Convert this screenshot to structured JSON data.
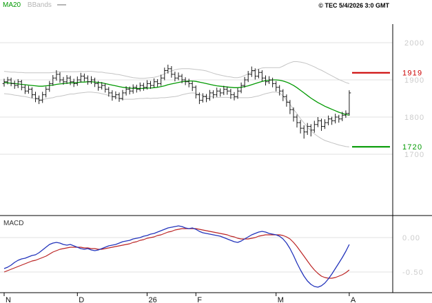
{
  "meta": {
    "copyright": "© TEC 5/4/2026 3:0 GMT"
  },
  "legend": {
    "ma20": "MA20",
    "bbands": "BBands"
  },
  "colors": {
    "ma20": "#009900",
    "bbands": "#c4c4c4",
    "bars": "#1a1a1a",
    "grid": "#e2e2e2",
    "axis_text": "#cbcbcb",
    "macd_line": "#2233bb",
    "macd_signal": "#bb2222",
    "frame": "#000000"
  },
  "price_axis": {
    "ticks": [
      2000,
      1900,
      1800,
      1700
    ],
    "levels": [
      {
        "role": "resistance",
        "label": "1919",
        "value": 1919,
        "color": "#cc0000"
      },
      {
        "role": "support",
        "label": "1720",
        "value": 1720,
        "color": "#009900"
      }
    ]
  },
  "macd_axis": {
    "label": "MACD",
    "ticks": [
      {
        "label": "0.00",
        "value": 0
      },
      {
        "label": "-0.50",
        "value": -0.5
      }
    ]
  },
  "x_axis": {
    "labels": [
      {
        "text": "N",
        "index": 0
      },
      {
        "text": "D",
        "index": 21
      },
      {
        "text": "26",
        "index": 41
      },
      {
        "text": "F",
        "index": 55
      },
      {
        "text": "M",
        "index": 78
      },
      {
        "text": "A",
        "index": 99
      }
    ]
  },
  "chart_data": {
    "type": "ohlc-with-indicators",
    "panels": [
      "price-with-ma20-and-bollinger-bands",
      "macd"
    ],
    "price_ylim": [
      1540,
      2060
    ],
    "macd_ylim": [
      -0.8,
      0.3
    ],
    "ohlc": [
      [
        1890,
        1903,
        1882,
        1895
      ],
      [
        1895,
        1908,
        1888,
        1900
      ],
      [
        1900,
        1906,
        1883,
        1890
      ],
      [
        1890,
        1898,
        1876,
        1885
      ],
      [
        1885,
        1902,
        1878,
        1895
      ],
      [
        1895,
        1900,
        1872,
        1880
      ],
      [
        1880,
        1887,
        1862,
        1870
      ],
      [
        1870,
        1884,
        1863,
        1875
      ],
      [
        1875,
        1880,
        1851,
        1860
      ],
      [
        1860,
        1868,
        1840,
        1850
      ],
      [
        1850,
        1858,
        1835,
        1845
      ],
      [
        1845,
        1868,
        1838,
        1860
      ],
      [
        1860,
        1882,
        1853,
        1875
      ],
      [
        1875,
        1897,
        1868,
        1890
      ],
      [
        1890,
        1913,
        1884,
        1905
      ],
      [
        1905,
        1926,
        1898,
        1915
      ],
      [
        1915,
        1921,
        1892,
        1900
      ],
      [
        1900,
        1908,
        1887,
        1895
      ],
      [
        1895,
        1913,
        1889,
        1905
      ],
      [
        1905,
        1911,
        1886,
        1895
      ],
      [
        1895,
        1903,
        1881,
        1890
      ],
      [
        1890,
        1909,
        1884,
        1900
      ],
      [
        1900,
        1919,
        1893,
        1910
      ],
      [
        1910,
        1917,
        1896,
        1905
      ],
      [
        1905,
        1912,
        1887,
        1895
      ],
      [
        1895,
        1910,
        1889,
        1900
      ],
      [
        1900,
        1906,
        1881,
        1890
      ],
      [
        1890,
        1897,
        1871,
        1880
      ],
      [
        1880,
        1894,
        1874,
        1885
      ],
      [
        1885,
        1891,
        1866,
        1875
      ],
      [
        1875,
        1881,
        1855,
        1865
      ],
      [
        1865,
        1872,
        1844,
        1855
      ],
      [
        1855,
        1869,
        1848,
        1860
      ],
      [
        1860,
        1866,
        1841,
        1850
      ],
      [
        1850,
        1873,
        1845,
        1865
      ],
      [
        1865,
        1883,
        1858,
        1875
      ],
      [
        1875,
        1882,
        1861,
        1870
      ],
      [
        1870,
        1888,
        1863,
        1880
      ],
      [
        1880,
        1887,
        1866,
        1875
      ],
      [
        1875,
        1893,
        1869,
        1885
      ],
      [
        1885,
        1892,
        1871,
        1880
      ],
      [
        1880,
        1899,
        1874,
        1890
      ],
      [
        1890,
        1897,
        1876,
        1885
      ],
      [
        1885,
        1904,
        1879,
        1895
      ],
      [
        1895,
        1902,
        1881,
        1890
      ],
      [
        1890,
        1914,
        1884,
        1905
      ],
      [
        1905,
        1933,
        1899,
        1925
      ],
      [
        1925,
        1941,
        1917,
        1930
      ],
      [
        1930,
        1937,
        1906,
        1915
      ],
      [
        1915,
        1922,
        1896,
        1905
      ],
      [
        1905,
        1920,
        1899,
        1910
      ],
      [
        1910,
        1916,
        1891,
        1900
      ],
      [
        1900,
        1907,
        1886,
        1895
      ],
      [
        1895,
        1903,
        1880,
        1890
      ],
      [
        1890,
        1896,
        1870,
        1880
      ],
      [
        1880,
        1885,
        1850,
        1860
      ],
      [
        1860,
        1866,
        1835,
        1845
      ],
      [
        1845,
        1864,
        1839,
        1855
      ],
      [
        1855,
        1862,
        1840,
        1850
      ],
      [
        1850,
        1873,
        1844,
        1865
      ],
      [
        1865,
        1872,
        1850,
        1860
      ],
      [
        1860,
        1879,
        1854,
        1870
      ],
      [
        1870,
        1877,
        1855,
        1865
      ],
      [
        1865,
        1884,
        1859,
        1875
      ],
      [
        1875,
        1882,
        1860,
        1870
      ],
      [
        1870,
        1876,
        1849,
        1860
      ],
      [
        1860,
        1867,
        1845,
        1855
      ],
      [
        1855,
        1878,
        1849,
        1870
      ],
      [
        1870,
        1893,
        1864,
        1885
      ],
      [
        1885,
        1908,
        1879,
        1900
      ],
      [
        1900,
        1924,
        1894,
        1915
      ],
      [
        1915,
        1936,
        1908,
        1925
      ],
      [
        1925,
        1931,
        1901,
        1910
      ],
      [
        1910,
        1929,
        1904,
        1920
      ],
      [
        1920,
        1926,
        1896,
        1905
      ],
      [
        1905,
        1912,
        1885,
        1895
      ],
      [
        1895,
        1910,
        1889,
        1900
      ],
      [
        1900,
        1906,
        1880,
        1890
      ],
      [
        1890,
        1897,
        1869,
        1880
      ],
      [
        1880,
        1886,
        1858,
        1870
      ],
      [
        1870,
        1875,
        1843,
        1855
      ],
      [
        1855,
        1861,
        1828,
        1840
      ],
      [
        1840,
        1846,
        1808,
        1820
      ],
      [
        1820,
        1826,
        1788,
        1800
      ],
      [
        1800,
        1807,
        1772,
        1785
      ],
      [
        1785,
        1792,
        1756,
        1770
      ],
      [
        1770,
        1778,
        1742,
        1760
      ],
      [
        1760,
        1784,
        1752,
        1775
      ],
      [
        1775,
        1781,
        1748,
        1765
      ],
      [
        1765,
        1790,
        1758,
        1780
      ],
      [
        1780,
        1800,
        1773,
        1790
      ],
      [
        1790,
        1796,
        1763,
        1775
      ],
      [
        1775,
        1794,
        1768,
        1785
      ],
      [
        1785,
        1804,
        1778,
        1795
      ],
      [
        1795,
        1801,
        1779,
        1790
      ],
      [
        1790,
        1809,
        1783,
        1800
      ],
      [
        1800,
        1806,
        1785,
        1795
      ],
      [
        1795,
        1814,
        1789,
        1805
      ],
      [
        1805,
        1818,
        1798,
        1810
      ],
      [
        1810,
        1872,
        1804,
        1865
      ]
    ],
    "ma20": [
      1893,
      1892,
      1891,
      1890,
      1889,
      1888,
      1887,
      1886,
      1885,
      1884,
      1883,
      1883,
      1884,
      1885,
      1886,
      1888,
      1889,
      1890,
      1891,
      1892,
      1892,
      1893,
      1894,
      1894,
      1895,
      1895,
      1894,
      1893,
      1892,
      1890,
      1888,
      1886,
      1884,
      1882,
      1880,
      1879,
      1878,
      1877,
      1877,
      1877,
      1877,
      1878,
      1878,
      1879,
      1880,
      1882,
      1884,
      1887,
      1889,
      1891,
      1893,
      1895,
      1896,
      1897,
      1897,
      1896,
      1894,
      1892,
      1890,
      1888,
      1886,
      1884,
      1883,
      1882,
      1881,
      1880,
      1879,
      1879,
      1880,
      1882,
      1884,
      1887,
      1890,
      1893,
      1896,
      1898,
      1899,
      1900,
      1900,
      1899,
      1897,
      1894,
      1890,
      1885,
      1879,
      1872,
      1865,
      1858,
      1851,
      1845,
      1839,
      1834,
      1829,
      1825,
      1821,
      1817,
      1813,
      1810,
      1807,
      1805
    ],
    "bbands_halfwidth": [
      30,
      30,
      30,
      31,
      31,
      32,
      32,
      33,
      34,
      35,
      36,
      36,
      35,
      34,
      34,
      33,
      33,
      32,
      31,
      30,
      30,
      29,
      29,
      28,
      28,
      28,
      28,
      28,
      29,
      29,
      30,
      31,
      31,
      32,
      32,
      31,
      30,
      29,
      28,
      27,
      27,
      27,
      28,
      28,
      29,
      30,
      32,
      34,
      35,
      36,
      36,
      35,
      34,
      33,
      32,
      32,
      33,
      34,
      34,
      33,
      32,
      31,
      30,
      29,
      28,
      28,
      27,
      27,
      28,
      30,
      32,
      34,
      35,
      36,
      36,
      35,
      34,
      33,
      33,
      34,
      40,
      48,
      56,
      64,
      70,
      76,
      81,
      85,
      88,
      90,
      91,
      92,
      92,
      91,
      90,
      89,
      88,
      87,
      86,
      85
    ],
    "macd": [
      -0.45,
      -0.43,
      -0.4,
      -0.36,
      -0.33,
      -0.31,
      -0.3,
      -0.28,
      -0.26,
      -0.25,
      -0.22,
      -0.18,
      -0.14,
      -0.1,
      -0.08,
      -0.07,
      -0.08,
      -0.1,
      -0.11,
      -0.1,
      -0.12,
      -0.14,
      -0.16,
      -0.17,
      -0.16,
      -0.18,
      -0.19,
      -0.18,
      -0.16,
      -0.14,
      -0.12,
      -0.11,
      -0.1,
      -0.08,
      -0.06,
      -0.05,
      -0.04,
      -0.02,
      -0.01,
      0.0,
      0.02,
      0.03,
      0.05,
      0.06,
      0.08,
      0.1,
      0.12,
      0.14,
      0.15,
      0.16,
      0.17,
      0.16,
      0.14,
      0.13,
      0.14,
      0.12,
      0.09,
      0.07,
      0.06,
      0.05,
      0.04,
      0.03,
      0.02,
      0.0,
      -0.02,
      -0.04,
      -0.06,
      -0.07,
      -0.05,
      -0.02,
      0.01,
      0.04,
      0.06,
      0.08,
      0.09,
      0.08,
      0.06,
      0.05,
      0.04,
      0.02,
      -0.02,
      -0.08,
      -0.16,
      -0.26,
      -0.37,
      -0.47,
      -0.56,
      -0.63,
      -0.68,
      -0.71,
      -0.72,
      -0.7,
      -0.66,
      -0.6,
      -0.53,
      -0.45,
      -0.37,
      -0.29,
      -0.2,
      -0.1
    ],
    "macd_signal": [
      -0.5,
      -0.48,
      -0.46,
      -0.44,
      -0.42,
      -0.4,
      -0.38,
      -0.36,
      -0.34,
      -0.33,
      -0.31,
      -0.29,
      -0.27,
      -0.24,
      -0.21,
      -0.19,
      -0.17,
      -0.16,
      -0.15,
      -0.14,
      -0.14,
      -0.14,
      -0.14,
      -0.15,
      -0.15,
      -0.16,
      -0.16,
      -0.17,
      -0.17,
      -0.16,
      -0.15,
      -0.14,
      -0.13,
      -0.12,
      -0.11,
      -0.1,
      -0.09,
      -0.07,
      -0.06,
      -0.04,
      -0.03,
      -0.01,
      0.0,
      0.01,
      0.03,
      0.04,
      0.06,
      0.08,
      0.09,
      0.11,
      0.12,
      0.13,
      0.13,
      0.13,
      0.13,
      0.13,
      0.12,
      0.11,
      0.1,
      0.09,
      0.08,
      0.07,
      0.06,
      0.05,
      0.04,
      0.02,
      0.01,
      -0.01,
      -0.02,
      -0.02,
      -0.02,
      -0.01,
      0.0,
      0.02,
      0.03,
      0.04,
      0.04,
      0.04,
      0.04,
      0.04,
      0.03,
      0.01,
      -0.02,
      -0.07,
      -0.13,
      -0.2,
      -0.27,
      -0.34,
      -0.41,
      -0.47,
      -0.52,
      -0.56,
      -0.58,
      -0.59,
      -0.59,
      -0.58,
      -0.56,
      -0.54,
      -0.51,
      -0.47
    ]
  }
}
